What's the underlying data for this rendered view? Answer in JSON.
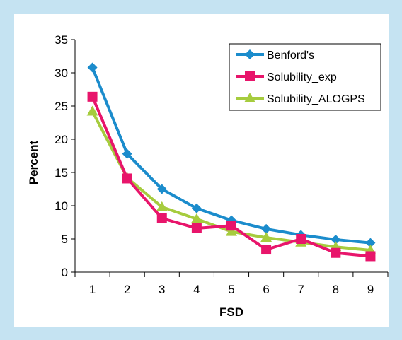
{
  "chart_data": {
    "type": "line",
    "title": "",
    "xlabel": "FSD",
    "ylabel": "Percent",
    "x": [
      1,
      2,
      3,
      4,
      5,
      6,
      7,
      8,
      9
    ],
    "x_ticks": [
      "1",
      "2",
      "3",
      "4",
      "5",
      "6",
      "7",
      "8",
      "9"
    ],
    "ylim": [
      0,
      35
    ],
    "y_ticks": [
      "0",
      "5",
      "10",
      "15",
      "20",
      "25",
      "30",
      "35"
    ],
    "grid": false,
    "legend_position": "top-right",
    "series": [
      {
        "name": "Benford's",
        "color": "#1b8ccc",
        "marker": "diamond",
        "values": [
          30.8,
          17.8,
          12.5,
          9.6,
          7.8,
          6.5,
          5.6,
          4.9,
          4.4
        ]
      },
      {
        "name": "Solubility_exp",
        "color": "#e8156b",
        "marker": "square",
        "values": [
          26.4,
          14.1,
          8.1,
          6.6,
          7.0,
          3.4,
          5.0,
          2.9,
          2.4
        ]
      },
      {
        "name": "Solubility_ALOGPS",
        "color": "#a6cc3e",
        "marker": "triangle",
        "values": [
          24.2,
          14.2,
          9.8,
          8.0,
          6.1,
          5.2,
          4.5,
          3.8,
          3.3
        ]
      }
    ]
  }
}
